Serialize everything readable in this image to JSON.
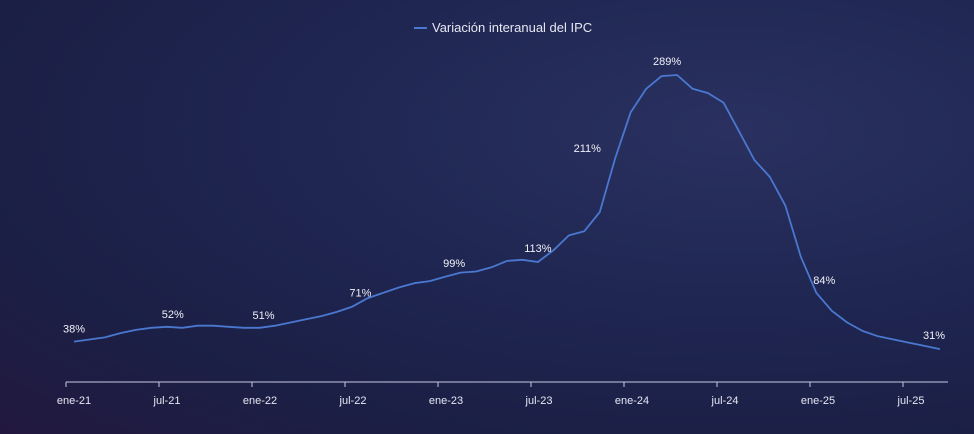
{
  "chart_data": {
    "type": "line",
    "legend": "top-center",
    "grid": false,
    "ylim": [
      0,
      320
    ],
    "categories": [
      "ene-21",
      "jul-21",
      "ene-22",
      "jul-22",
      "ene-23",
      "jul-23",
      "ene-24",
      "jul-24",
      "ene-25",
      "jul-25"
    ],
    "x": [
      "ene-21",
      "feb-21",
      "mar-21",
      "abr-21",
      "may-21",
      "jun-21",
      "jul-21",
      "ago-21",
      "sep-21",
      "oct-21",
      "nov-21",
      "dic-21",
      "ene-22",
      "feb-22",
      "mar-22",
      "abr-22",
      "may-22",
      "jun-22",
      "jul-22",
      "ago-22",
      "sep-22",
      "oct-22",
      "nov-22",
      "dic-22",
      "ene-23",
      "feb-23",
      "mar-23",
      "abr-23",
      "may-23",
      "jun-23",
      "jul-23",
      "ago-23",
      "sep-23",
      "oct-23",
      "nov-23",
      "dic-23",
      "ene-24",
      "feb-24",
      "mar-24",
      "abr-24",
      "may-24",
      "jun-24",
      "jul-24",
      "ago-24",
      "sep-24",
      "oct-24",
      "nov-24",
      "dic-24",
      "ene-25",
      "feb-25",
      "mar-25",
      "abr-25",
      "may-25",
      "jun-25",
      "jul-25",
      "ago-25",
      "sep-25"
    ],
    "series": [
      {
        "name": "Variación interanual del IPC",
        "color": "#4a78d0",
        "values": [
          38,
          40,
          42,
          46,
          49,
          51,
          52,
          51,
          53,
          53,
          52,
          51,
          51,
          53,
          56,
          59,
          62,
          66,
          71,
          79,
          84,
          89,
          93,
          95,
          99,
          103,
          104,
          108,
          114,
          115,
          113,
          124,
          138,
          142,
          160,
          211,
          254,
          276,
          288,
          289,
          276,
          272,
          263,
          236,
          209,
          193,
          166,
          118,
          84,
          67,
          56,
          48,
          43,
          40,
          37,
          34,
          31
        ]
      }
    ],
    "annotations": [
      {
        "index": 0,
        "label": "38%"
      },
      {
        "index": 6,
        "label": "52%"
      },
      {
        "index": 12,
        "label": "51%"
      },
      {
        "index": 18,
        "label": "71%"
      },
      {
        "index": 24,
        "label": "99%"
      },
      {
        "index": 30,
        "label": "113%"
      },
      {
        "index": 35,
        "label": "211%"
      },
      {
        "index": 39,
        "label": "289%"
      },
      {
        "index": 48,
        "label": "84%"
      },
      {
        "index": 56,
        "label": "31%"
      }
    ]
  }
}
